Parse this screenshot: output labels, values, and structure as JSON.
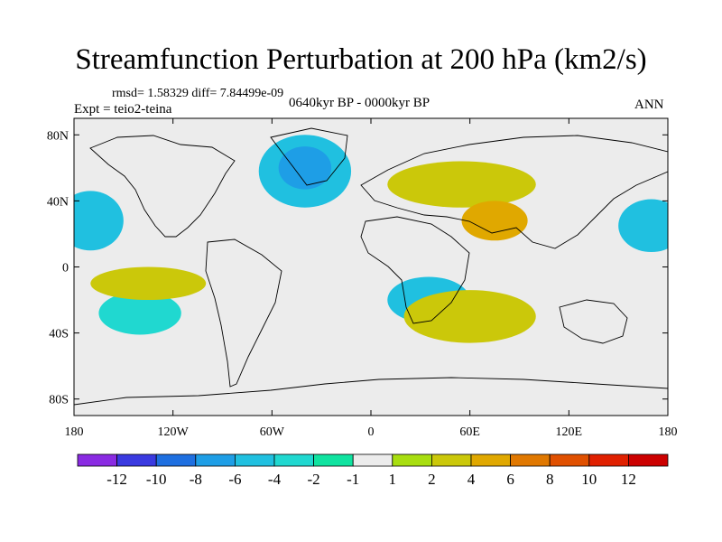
{
  "title": "Streamfunction Perturbation at 200 hPa (km2/s)",
  "stats": "rmsd= 1.58329  diff= 7.84499e-09",
  "experiment": "Expt = teio2-teina",
  "period": "0640kyr BP - 0000kyr BP",
  "season": "ANN",
  "map": {
    "lon_range": [
      -180,
      180
    ],
    "lat_range": [
      -90,
      90
    ],
    "x_ticks": [
      {
        "lon": -180,
        "label": "180"
      },
      {
        "lon": -120,
        "label": "120W"
      },
      {
        "lon": -60,
        "label": "60W"
      },
      {
        "lon": 0,
        "label": "0"
      },
      {
        "lon": 60,
        "label": "60E"
      },
      {
        "lon": 120,
        "label": "120E"
      },
      {
        "lon": 180,
        "label": "180"
      }
    ],
    "y_ticks": [
      {
        "lat": 80,
        "label": "80N"
      },
      {
        "lat": 40,
        "label": "40N"
      },
      {
        "lat": 0,
        "label": "0"
      },
      {
        "lat": -40,
        "label": "40S"
      },
      {
        "lat": -80,
        "label": "80S"
      }
    ],
    "anomalies": [
      {
        "lon": -40,
        "lat": 58,
        "rlon": 28,
        "rlat": 22,
        "value": -5
      },
      {
        "lon": -40,
        "lat": 60,
        "rlon": 16,
        "rlat": 13,
        "value": -6
      },
      {
        "lon": 55,
        "lat": 50,
        "rlon": 45,
        "rlat": 14,
        "value": 3
      },
      {
        "lon": 75,
        "lat": 28,
        "rlon": 20,
        "rlat": 12,
        "value": 5
      },
      {
        "lon": -170,
        "lat": 28,
        "rlon": 20,
        "rlat": 18,
        "value": -4
      },
      {
        "lon": 170,
        "lat": 25,
        "rlon": 20,
        "rlat": 16,
        "value": -4
      },
      {
        "lon": 35,
        "lat": -20,
        "rlon": 25,
        "rlat": 14,
        "value": -4
      },
      {
        "lon": 60,
        "lat": -30,
        "rlon": 40,
        "rlat": 16,
        "value": 3
      },
      {
        "lon": -140,
        "lat": -28,
        "rlon": 25,
        "rlat": 13,
        "value": -3
      },
      {
        "lon": -135,
        "lat": -10,
        "rlon": 35,
        "rlat": 10,
        "value": 3
      }
    ]
  },
  "colorbar": {
    "levels": [
      "-12",
      "-10",
      "-8",
      "-6",
      "-4",
      "-2",
      "-1",
      "1",
      "2",
      "4",
      "6",
      "8",
      "10",
      "12"
    ],
    "colors": [
      "#8a2be2",
      "#3a3ae0",
      "#1e6fe0",
      "#1e9ee6",
      "#20c0e0",
      "#20d8d0",
      "#10e3a0",
      "#ececec",
      "#a8de10",
      "#cbc80a",
      "#e0a800",
      "#e07800",
      "#e05000",
      "#e02000",
      "#cc0000"
    ]
  }
}
